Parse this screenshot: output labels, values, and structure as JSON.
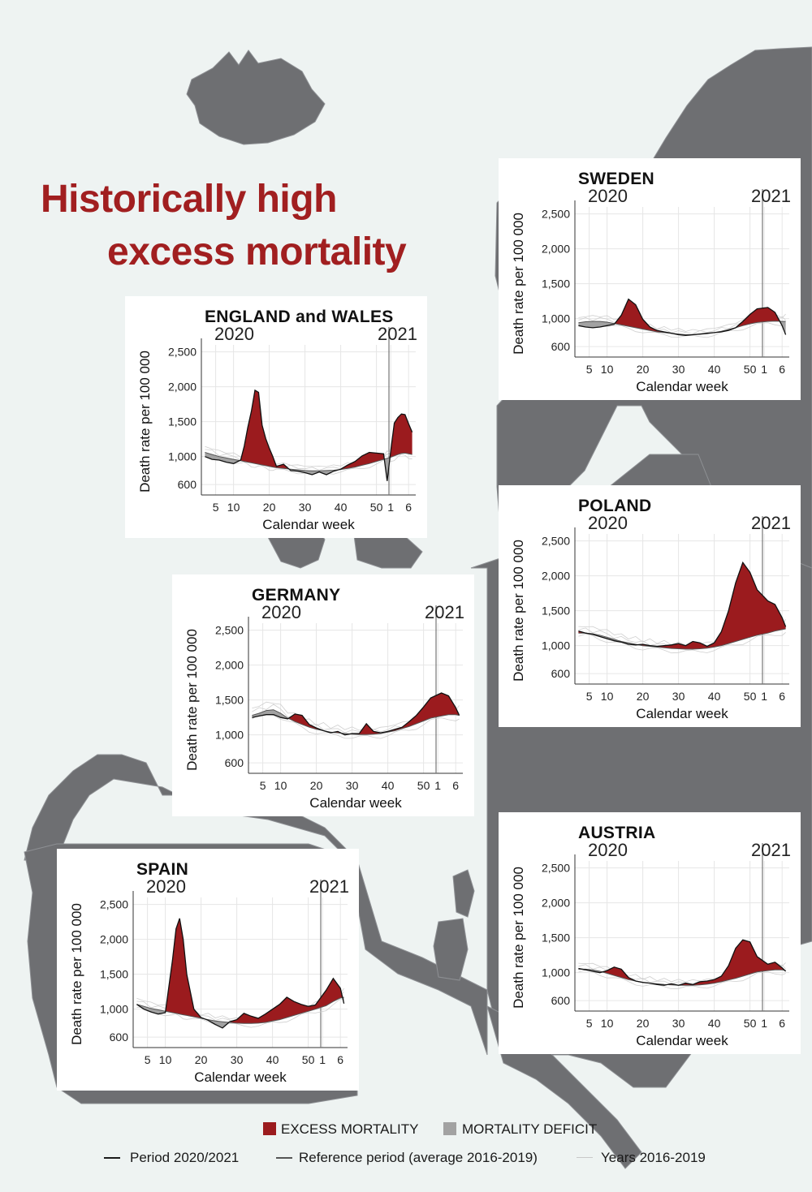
{
  "title": {
    "line1": "Historically high",
    "line2": "excess mortality"
  },
  "colors": {
    "excess": "#9b1b1e",
    "deficit": "#a2a2a2",
    "title": "#a11f20",
    "map": "#6e6f72",
    "sea": "#eef3f2"
  },
  "axis_common": {
    "ylabel": "Death rate per 100 000",
    "xlabel": "Calendar week",
    "yticks": [
      "600",
      "1,000",
      "1,500",
      "2,000",
      "2,500"
    ],
    "xticks": [
      "5",
      "10",
      "20",
      "30",
      "40",
      "50",
      "1",
      "6"
    ],
    "year_labels": [
      "2020",
      "2021"
    ]
  },
  "legend": {
    "excess": "EXCESS MORTALITY",
    "deficit": "MORTALITY DEFICIT",
    "period": "Period 2020/2021",
    "reference": "Reference period (average 2016-2019)",
    "years": "Years 2016-2019"
  },
  "chart_data": [
    {
      "type": "area",
      "title": "SWEDEN",
      "xlabel": "Calendar week",
      "ylabel": "Death rate per 100 000",
      "ylim": [
        600,
        2500
      ],
      "x": [
        "2020-W02",
        "2020-W04",
        "2020-W06",
        "2020-W08",
        "2020-W10",
        "2020-W12",
        "2020-W14",
        "2020-W16",
        "2020-W18",
        "2020-W20",
        "2020-W22",
        "2020-W24",
        "2020-W26",
        "2020-W28",
        "2020-W30",
        "2020-W32",
        "2020-W34",
        "2020-W36",
        "2020-W38",
        "2020-W40",
        "2020-W42",
        "2020-W44",
        "2020-W46",
        "2020-W48",
        "2020-W50",
        "2020-W52",
        "2021-W02",
        "2021-W04",
        "2021-W06",
        "2021-W07"
      ],
      "series": [
        {
          "name": "Period 2020/2021",
          "values": [
            900,
            880,
            870,
            880,
            900,
            920,
            1050,
            1280,
            1200,
            990,
            880,
            830,
            810,
            790,
            770,
            760,
            770,
            780,
            790,
            800,
            810,
            830,
            870,
            960,
            1060,
            1140,
            1160,
            1090,
            900,
            770
          ]
        },
        {
          "name": "Reference period (average 2016-2019)",
          "values": [
            940,
            955,
            960,
            960,
            950,
            930,
            910,
            890,
            870,
            850,
            830,
            810,
            800,
            790,
            780,
            770,
            770,
            775,
            785,
            800,
            820,
            845,
            870,
            900,
            925,
            945,
            960,
            965,
            960,
            960
          ]
        }
      ]
    },
    {
      "type": "area",
      "title": "ENGLAND and WALES",
      "xlabel": "Calendar week",
      "ylabel": "Death rate per 100 000",
      "ylim": [
        600,
        2500
      ],
      "x": [
        "2020-W02",
        "2020-W04",
        "2020-W06",
        "2020-W08",
        "2020-W10",
        "2020-W12",
        "2020-W13",
        "2020-W14",
        "2020-W15",
        "2020-W16",
        "2020-W17",
        "2020-W18",
        "2020-W19",
        "2020-W20",
        "2020-W21",
        "2020-W22",
        "2020-W24",
        "2020-W26",
        "2020-W28",
        "2020-W30",
        "2020-W32",
        "2020-W34",
        "2020-W36",
        "2020-W38",
        "2020-W40",
        "2020-W42",
        "2020-W44",
        "2020-W46",
        "2020-W48",
        "2020-W50",
        "2020-W52",
        "2020-W53",
        "2021-W01",
        "2021-W02",
        "2021-W03",
        "2021-W04",
        "2021-W05",
        "2021-W06",
        "2021-W07"
      ],
      "series": [
        {
          "name": "Period 2020/2021",
          "values": [
            1000,
            960,
            950,
            920,
            900,
            950,
            1150,
            1420,
            1650,
            1950,
            1920,
            1450,
            1260,
            1120,
            1000,
            860,
            890,
            800,
            790,
            770,
            740,
            780,
            740,
            790,
            820,
            880,
            930,
            1010,
            1060,
            1050,
            1040,
            650,
            1080,
            1480,
            1560,
            1610,
            1600,
            1470,
            1350
          ]
        },
        {
          "name": "Reference period (average 2016-2019)",
          "values": [
            1060,
            1030,
            1000,
            980,
            960,
            940,
            930,
            920,
            910,
            900,
            890,
            880,
            870,
            860,
            850,
            840,
            830,
            820,
            810,
            800,
            795,
            795,
            800,
            805,
            815,
            830,
            850,
            875,
            900,
            930,
            960,
            975,
            990,
            1010,
            1030,
            1045,
            1050,
            1040,
            1030
          ]
        }
      ]
    },
    {
      "type": "area",
      "title": "POLAND",
      "xlabel": "Calendar week",
      "ylabel": "Death rate per 100 000",
      "ylim": [
        600,
        2500
      ],
      "x": [
        "2020-W02",
        "2020-W04",
        "2020-W06",
        "2020-W08",
        "2020-W10",
        "2020-W12",
        "2020-W14",
        "2020-W16",
        "2020-W18",
        "2020-W20",
        "2020-W22",
        "2020-W24",
        "2020-W26",
        "2020-W28",
        "2020-W30",
        "2020-W32",
        "2020-W34",
        "2020-W36",
        "2020-W38",
        "2020-W40",
        "2020-W42",
        "2020-W44",
        "2020-W46",
        "2020-W48",
        "2020-W50",
        "2020-W52",
        "2021-W02",
        "2021-W04",
        "2021-W06",
        "2021-W07"
      ],
      "series": [
        {
          "name": "Period 2020/2021",
          "values": [
            1210,
            1180,
            1160,
            1130,
            1100,
            1070,
            1050,
            1020,
            1010,
            1020,
            1000,
            990,
            1000,
            1010,
            1030,
            1000,
            1060,
            1040,
            990,
            1040,
            1200,
            1500,
            1900,
            2190,
            2050,
            1800,
            1640,
            1590,
            1400,
            1270
          ]
        },
        {
          "name": "Reference period (average 2016-2019)",
          "values": [
            1180,
            1180,
            1170,
            1150,
            1120,
            1090,
            1060,
            1040,
            1020,
            1000,
            990,
            980,
            970,
            960,
            955,
            950,
            950,
            955,
            965,
            980,
            1000,
            1030,
            1060,
            1090,
            1120,
            1150,
            1180,
            1210,
            1230,
            1240
          ]
        }
      ]
    },
    {
      "type": "area",
      "title": "GERMANY",
      "xlabel": "Calendar week",
      "ylabel": "Death rate per 100 000",
      "ylim": [
        600,
        2500
      ],
      "x": [
        "2020-W02",
        "2020-W04",
        "2020-W06",
        "2020-W08",
        "2020-W10",
        "2020-W12",
        "2020-W14",
        "2020-W16",
        "2020-W18",
        "2020-W20",
        "2020-W22",
        "2020-W24",
        "2020-W26",
        "2020-W28",
        "2020-W30",
        "2020-W32",
        "2020-W34",
        "2020-W36",
        "2020-W38",
        "2020-W40",
        "2020-W42",
        "2020-W44",
        "2020-W46",
        "2020-W48",
        "2020-W50",
        "2020-W52",
        "2021-W02",
        "2021-W04",
        "2021-W06",
        "2021-W07"
      ],
      "series": [
        {
          "name": "Period 2020/2021",
          "values": [
            1250,
            1270,
            1290,
            1290,
            1250,
            1230,
            1300,
            1280,
            1150,
            1100,
            1060,
            1030,
            1050,
            1000,
            1020,
            1020,
            1160,
            1050,
            1030,
            1050,
            1080,
            1110,
            1190,
            1280,
            1400,
            1530,
            1600,
            1560,
            1390,
            1280
          ]
        },
        {
          "name": "Reference period (average 2016-2019)",
          "values": [
            1280,
            1310,
            1350,
            1360,
            1310,
            1240,
            1190,
            1150,
            1110,
            1080,
            1060,
            1040,
            1030,
            1020,
            1010,
            1005,
            1005,
            1010,
            1020,
            1040,
            1060,
            1090,
            1120,
            1160,
            1200,
            1240,
            1270,
            1290,
            1290,
            1280
          ]
        }
      ]
    },
    {
      "type": "area",
      "title": "AUSTRIA",
      "xlabel": "Calendar week",
      "ylabel": "Death rate per 100 000",
      "ylim": [
        600,
        2500
      ],
      "x": [
        "2020-W02",
        "2020-W04",
        "2020-W06",
        "2020-W08",
        "2020-W10",
        "2020-W12",
        "2020-W14",
        "2020-W16",
        "2020-W18",
        "2020-W20",
        "2020-W22",
        "2020-W24",
        "2020-W26",
        "2020-W28",
        "2020-W30",
        "2020-W32",
        "2020-W34",
        "2020-W36",
        "2020-W38",
        "2020-W40",
        "2020-W42",
        "2020-W44",
        "2020-W46",
        "2020-W48",
        "2020-W50",
        "2020-W52",
        "2021-W02",
        "2021-W04",
        "2021-W06",
        "2021-W07"
      ],
      "series": [
        {
          "name": "Period 2020/2021",
          "values": [
            1060,
            1040,
            1020,
            1000,
            1030,
            1080,
            1050,
            930,
            880,
            860,
            850,
            830,
            820,
            840,
            820,
            850,
            830,
            870,
            880,
            900,
            950,
            1100,
            1350,
            1470,
            1440,
            1230,
            1120,
            1150,
            1070,
            1020
          ]
        },
        {
          "name": "Reference period (average 2016-2019)",
          "values": [
            1050,
            1050,
            1040,
            1020,
            990,
            960,
            930,
            900,
            880,
            860,
            850,
            840,
            830,
            825,
            820,
            820,
            820,
            825,
            835,
            850,
            870,
            895,
            920,
            950,
            980,
            1010,
            1030,
            1040,
            1040,
            1030
          ]
        }
      ]
    },
    {
      "type": "area",
      "title": "SPAIN",
      "xlabel": "Calendar week",
      "ylabel": "Death rate per 100 000",
      "ylim": [
        600,
        2500
      ],
      "x": [
        "2020-W02",
        "2020-W04",
        "2020-W06",
        "2020-W08",
        "2020-W10",
        "2020-W12",
        "2020-W13",
        "2020-W14",
        "2020-W15",
        "2020-W16",
        "2020-W18",
        "2020-W20",
        "2020-W22",
        "2020-W24",
        "2020-W26",
        "2020-W28",
        "2020-W30",
        "2020-W32",
        "2020-W34",
        "2020-W36",
        "2020-W38",
        "2020-W40",
        "2020-W42",
        "2020-W44",
        "2020-W46",
        "2020-W48",
        "2020-W50",
        "2020-W52",
        "2021-W02",
        "2021-W04",
        "2021-W06",
        "2021-W07"
      ],
      "series": [
        {
          "name": "Period 2020/2021",
          "values": [
            1070,
            1000,
            960,
            930,
            950,
            1700,
            2150,
            2300,
            2000,
            1500,
            1000,
            880,
            840,
            780,
            730,
            820,
            850,
            940,
            900,
            870,
            930,
            1000,
            1070,
            1170,
            1110,
            1070,
            1040,
            1060,
            1270,
            1440,
            1300,
            1080
          ]
        },
        {
          "name": "Reference period (average 2016-2019)",
          "values": [
            1070,
            1040,
            1010,
            990,
            970,
            950,
            940,
            930,
            920,
            910,
            890,
            870,
            850,
            830,
            820,
            810,
            800,
            795,
            795,
            800,
            810,
            830,
            850,
            880,
            910,
            940,
            970,
            1000,
            1050,
            1110,
            1160,
            1170
          ]
        }
      ]
    }
  ]
}
